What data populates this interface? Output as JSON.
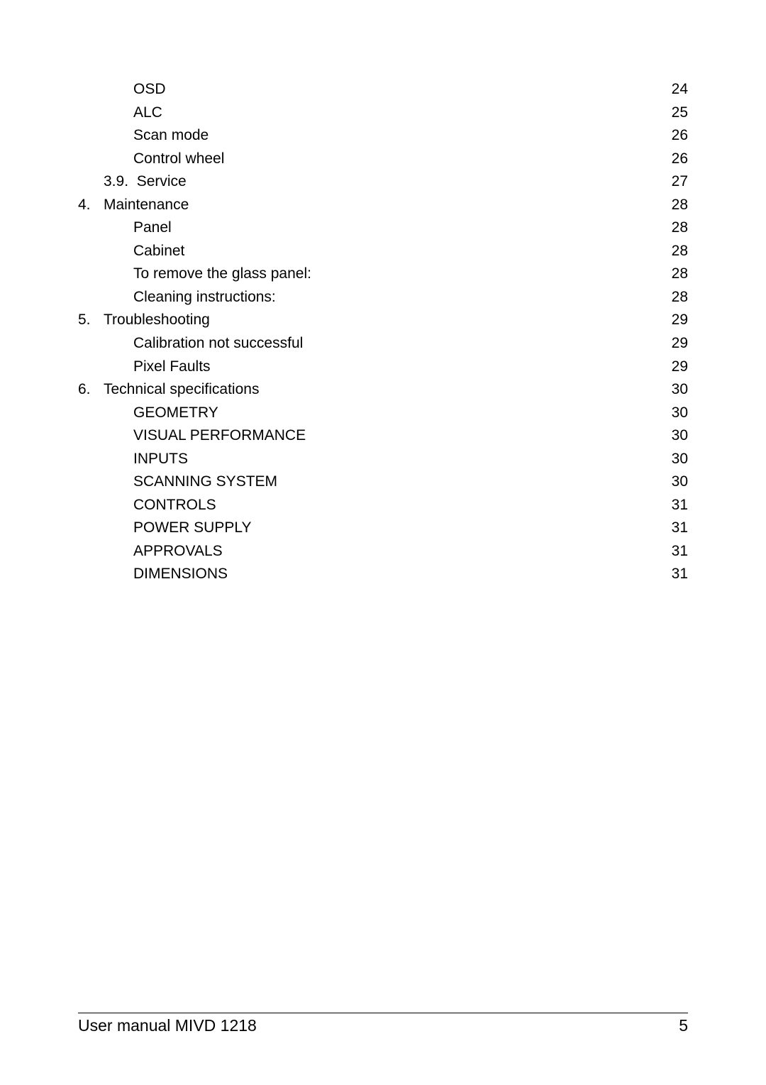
{
  "document": {
    "footer_title": "User manual MIVD 1218",
    "page_number": "5"
  },
  "colors": {
    "text": "#000000",
    "background": "#ffffff",
    "rule": "#000000"
  },
  "typography": {
    "body_font_family": "Arial",
    "body_font_size_pt": 16,
    "footer_font_size_pt": 17,
    "line_height": 1.55
  },
  "toc": {
    "entries": [
      {
        "level": 2,
        "number": "",
        "title": "OSD",
        "page": "24"
      },
      {
        "level": 2,
        "number": "",
        "title": "ALC",
        "page": "25"
      },
      {
        "level": 2,
        "number": "",
        "title": "Scan mode",
        "page": "26"
      },
      {
        "level": 2,
        "number": "",
        "title": "Control wheel",
        "page": "26"
      },
      {
        "level": 1,
        "number": "3.9.",
        "title": "Service",
        "page": "27"
      },
      {
        "level": 0,
        "number": "4.",
        "title": "Maintenance",
        "page": "28"
      },
      {
        "level": 2,
        "number": "",
        "title": "Panel",
        "page": "28"
      },
      {
        "level": 2,
        "number": "",
        "title": "Cabinet",
        "page": "28"
      },
      {
        "level": 2,
        "number": "",
        "title": "To remove the glass panel:",
        "page": "28"
      },
      {
        "level": 2,
        "number": "",
        "title": "Cleaning instructions:",
        "page": "28"
      },
      {
        "level": 0,
        "number": "5.",
        "title": "Troubleshooting",
        "page": "29"
      },
      {
        "level": 2,
        "number": "",
        "title": "Calibration not successful",
        "page": "29"
      },
      {
        "level": 2,
        "number": "",
        "title": "Pixel Faults",
        "page": "29"
      },
      {
        "level": 0,
        "number": "6.",
        "title": "Technical specifications",
        "page": "30"
      },
      {
        "level": 2,
        "number": "",
        "title": "GEOMETRY",
        "page": "30"
      },
      {
        "level": 2,
        "number": "",
        "title": "VISUAL PERFORMANCE",
        "page": "30"
      },
      {
        "level": 2,
        "number": "",
        "title": "INPUTS",
        "page": "30"
      },
      {
        "level": 2,
        "number": "",
        "title": "SCANNING SYSTEM",
        "page": "30"
      },
      {
        "level": 2,
        "number": "",
        "title": "CONTROLS",
        "page": "31"
      },
      {
        "level": 2,
        "number": "",
        "title": "POWER SUPPLY",
        "page": "31"
      },
      {
        "level": 2,
        "number": "",
        "title": "APPROVALS",
        "page": "31"
      },
      {
        "level": 2,
        "number": "",
        "title": "DIMENSIONS",
        "page": "31"
      }
    ]
  }
}
